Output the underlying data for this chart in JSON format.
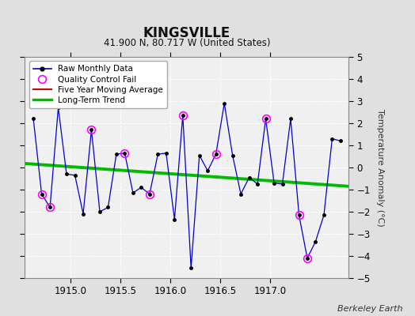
{
  "title": "KINGSVILLE",
  "subtitle": "41.900 N, 80.717 W (United States)",
  "credit": "Berkeley Earth",
  "ylabel": "Temperature Anomaly (°C)",
  "ylim": [
    -5,
    5
  ],
  "xlim": [
    1914.54,
    1917.79
  ],
  "xticks": [
    1915,
    1915.5,
    1916,
    1916.5,
    1917
  ],
  "yticks": [
    -5,
    -4,
    -3,
    -2,
    -1,
    0,
    1,
    2,
    3,
    4,
    5
  ],
  "fig_bg": "#e0e0e0",
  "plot_bg": "#f0f0f0",
  "grid_color": "#ffffff",
  "raw_x": [
    1914.625,
    1914.708,
    1914.792,
    1914.875,
    1914.958,
    1915.042,
    1915.125,
    1915.208,
    1915.292,
    1915.375,
    1915.458,
    1915.542,
    1915.625,
    1915.708,
    1915.792,
    1915.875,
    1915.958,
    1916.042,
    1916.125,
    1916.208,
    1916.292,
    1916.375,
    1916.458,
    1916.542,
    1916.625,
    1916.708,
    1916.792,
    1916.875,
    1916.958,
    1917.042,
    1917.125,
    1917.208,
    1917.292,
    1917.375,
    1917.458,
    1917.542,
    1917.625,
    1917.708
  ],
  "raw_y": [
    2.2,
    -1.2,
    -1.8,
    2.7,
    -0.3,
    -0.35,
    -2.1,
    1.7,
    -2.0,
    -1.8,
    0.6,
    0.65,
    -1.15,
    -0.9,
    -1.2,
    0.6,
    0.65,
    -2.35,
    2.35,
    -4.55,
    0.55,
    -0.15,
    0.6,
    2.9,
    0.55,
    -1.2,
    -0.45,
    -0.75,
    2.2,
    -0.7,
    -0.75,
    2.2,
    -2.15,
    -4.1,
    -3.35,
    -2.15,
    1.3,
    1.2
  ],
  "qc_fail_x": [
    1914.708,
    1914.792,
    1915.208,
    1915.542,
    1915.792,
    1916.125,
    1916.458,
    1916.958,
    1917.292,
    1917.375
  ],
  "qc_fail_y": [
    -1.2,
    -1.8,
    1.7,
    0.65,
    -1.2,
    2.35,
    0.6,
    2.2,
    -2.15,
    -4.1
  ],
  "trend_x": [
    1914.54,
    1917.79
  ],
  "trend_y": [
    0.18,
    -0.85
  ],
  "raw_color": "#0000cc",
  "raw_marker_color": "#000000",
  "qc_color": "#ff00ff",
  "trend_color": "#00bb00",
  "five_year_color": "#cc0000",
  "legend_bg": "#ffffff"
}
